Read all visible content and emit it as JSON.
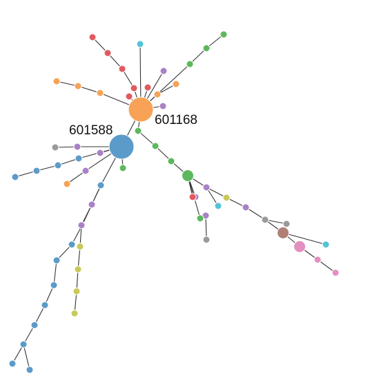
{
  "palette": {
    "orange": "#f7a256",
    "blue": "#5b9bc9",
    "green": "#5cb85c",
    "red": "#e05a5e",
    "purple": "#a882c5",
    "teal": "#55c3d6",
    "olive": "#c9c95a",
    "gray": "#9a9a9a",
    "brown": "#b07f76",
    "pink": "#e48fc1"
  },
  "labels": {
    "hub_orange": "601168",
    "hub_blue": "601588"
  },
  "nodes": [
    {
      "id": "h1",
      "c": "orange",
      "s": 3
    },
    {
      "id": "h2",
      "c": "blue",
      "s": 3
    },
    {
      "id": "g1",
      "c": "green",
      "s": 1
    },
    {
      "id": "g2",
      "c": "green",
      "s": 1
    },
    {
      "id": "g3",
      "c": "green",
      "s": 1
    },
    {
      "id": "g4",
      "c": "green",
      "s": 2
    },
    {
      "id": "p1",
      "c": "purple",
      "s": 1
    },
    {
      "id": "p2",
      "c": "purple",
      "s": 1
    },
    {
      "id": "o1",
      "c": "olive",
      "s": 1
    },
    {
      "id": "p3",
      "c": "purple",
      "s": 1
    },
    {
      "id": "gr1",
      "c": "gray",
      "s": 1
    },
    {
      "id": "gr2",
      "c": "gray",
      "s": 1
    },
    {
      "id": "br1",
      "c": "brown",
      "s": 2
    },
    {
      "id": "pk1",
      "c": "pink",
      "s": 2
    },
    {
      "id": "pk2",
      "c": "pink",
      "s": 1
    },
    {
      "id": "pk3",
      "c": "pink",
      "s": 1
    },
    {
      "id": "t1",
      "c": "teal",
      "s": 1
    },
    {
      "id": "g5",
      "c": "green",
      "s": 1
    },
    {
      "id": "p4",
      "c": "purple",
      "s": 1
    },
    {
      "id": "r1",
      "c": "red",
      "s": 1
    },
    {
      "id": "t2",
      "c": "teal",
      "s": 1
    },
    {
      "id": "gr3",
      "c": "gray",
      "s": 1
    },
    {
      "id": "b1",
      "c": "blue",
      "s": 1
    },
    {
      "id": "b2",
      "c": "blue",
      "s": 1
    },
    {
      "id": "b3",
      "c": "blue",
      "s": 1
    },
    {
      "id": "b4",
      "c": "blue",
      "s": 1
    },
    {
      "id": "b5",
      "c": "blue",
      "s": 1
    },
    {
      "id": "b6",
      "c": "blue",
      "s": 1
    },
    {
      "id": "b7",
      "c": "blue",
      "s": 1
    },
    {
      "id": "b8",
      "c": "blue",
      "s": 1
    },
    {
      "id": "b9",
      "c": "blue",
      "s": 1
    },
    {
      "id": "b10",
      "c": "blue",
      "s": 1
    },
    {
      "id": "p5",
      "c": "purple",
      "s": 1
    },
    {
      "id": "p6",
      "c": "purple",
      "s": 1
    },
    {
      "id": "o2",
      "c": "olive",
      "s": 1
    },
    {
      "id": "o3",
      "c": "olive",
      "s": 1
    },
    {
      "id": "o4",
      "c": "olive",
      "s": 1
    },
    {
      "id": "o5",
      "c": "olive",
      "s": 1
    },
    {
      "id": "p7",
      "c": "purple",
      "s": 1
    },
    {
      "id": "p8",
      "c": "purple",
      "s": 1
    },
    {
      "id": "p9",
      "c": "purple",
      "s": 1
    },
    {
      "id": "b11",
      "c": "blue",
      "s": 1
    },
    {
      "id": "b12",
      "c": "blue",
      "s": 1
    },
    {
      "id": "b13",
      "c": "blue",
      "s": 1
    },
    {
      "id": "b14",
      "c": "blue",
      "s": 1
    },
    {
      "id": "gr4",
      "c": "gray",
      "s": 1
    },
    {
      "id": "o6",
      "c": "orange",
      "s": 1
    },
    {
      "id": "g6",
      "c": "green",
      "s": 1
    },
    {
      "id": "r2",
      "c": "red",
      "s": 1
    },
    {
      "id": "r3",
      "c": "red",
      "s": 1
    },
    {
      "id": "r4",
      "c": "red",
      "s": 1
    },
    {
      "id": "r5",
      "c": "red",
      "s": 1
    },
    {
      "id": "t3",
      "c": "teal",
      "s": 1
    },
    {
      "id": "p10",
      "c": "purple",
      "s": 1
    },
    {
      "id": "or2",
      "c": "orange",
      "s": 1
    },
    {
      "id": "or3",
      "c": "orange",
      "s": 1
    },
    {
      "id": "or4",
      "c": "orange",
      "s": 1
    },
    {
      "id": "or5",
      "c": "orange",
      "s": 1
    },
    {
      "id": "or6",
      "c": "orange",
      "s": 1
    },
    {
      "id": "g7",
      "c": "green",
      "s": 1
    },
    {
      "id": "g8",
      "c": "green",
      "s": 1
    },
    {
      "id": "g9",
      "c": "green",
      "s": 1
    },
    {
      "id": "p11",
      "c": "purple",
      "s": 1
    },
    {
      "id": "r6",
      "c": "red",
      "s": 1
    },
    {
      "id": "r7",
      "c": "red",
      "s": 1
    }
  ]
}
